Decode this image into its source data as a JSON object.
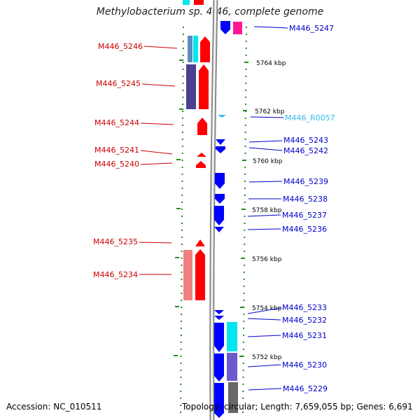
{
  "title": "Methylobacterium sp. 4-46, complete genome",
  "footer": {
    "accession": "Accession: NC_010511",
    "topology": "Topology: circular; Length: 7,659,055 bp; Genes: 6,691"
  },
  "colors": {
    "forward": "#ff0000",
    "reverse": "#0000ff",
    "rna": "#33bbee",
    "tick": "#228b22",
    "left_label": "#cc0000",
    "right_label": "#0000cc"
  },
  "ticks_kbp": [
    "5764 kbp",
    "5762 kbp",
    "5760 kbp",
    "5758 kbp",
    "5756 kbp",
    "5754 kbp",
    "5752 kbp"
  ],
  "left_labels": [
    "M446_5246",
    "M446_5245",
    "M446_5244",
    "M446_5241",
    "M446_5240",
    "M446_5235",
    "M446_5234"
  ],
  "right_labels": [
    "M446_5247",
    "M446_R0057",
    "M446_5243",
    "M446_5242",
    "M446_5239",
    "M446_5238",
    "M446_5237",
    "M446_5236",
    "M446_5233",
    "M446_5232",
    "M446_5231",
    "M446_5230",
    "M446_5229"
  ]
}
